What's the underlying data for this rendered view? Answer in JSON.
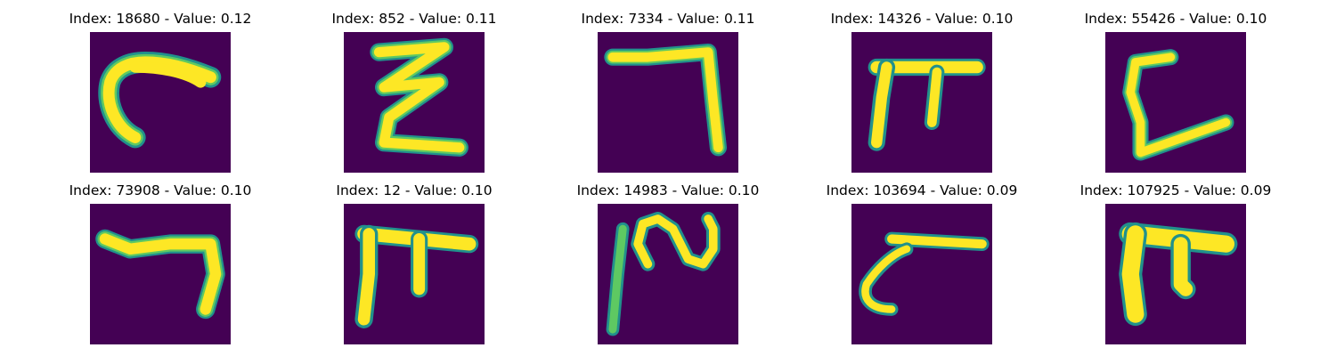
{
  "colors": {
    "background": "#440154",
    "stroke_mid": "#21918c",
    "stroke_edge": "#5ec962",
    "stroke_core": "#fde725"
  },
  "panels": [
    {
      "title": "Index: 18680 - Value: 0.12",
      "glyph": "c-curve"
    },
    {
      "title": "Index: 852 - Value: 0.11",
      "glyph": "zigzag"
    },
    {
      "title": "Index: 7334 - Value: 0.11",
      "glyph": "seven-hook"
    },
    {
      "title": "Index: 14326 - Value: 0.10",
      "glyph": "pi-shape"
    },
    {
      "title": "Index: 55426 - Value: 0.10",
      "glyph": "l-shape"
    },
    {
      "title": "Index: 73908 - Value: 0.10",
      "glyph": "seven-hook-short"
    },
    {
      "title": "Index: 12 - Value: 0.10",
      "glyph": "pi-shape-wide"
    },
    {
      "title": "Index: 14983 - Value: 0.10",
      "glyph": "tilde-stroke"
    },
    {
      "title": "Index: 103694 - Value: 0.09",
      "glyph": "c-with-bar"
    },
    {
      "title": "Index: 107925 - Value: 0.09",
      "glyph": "pi-shape-bold"
    }
  ]
}
